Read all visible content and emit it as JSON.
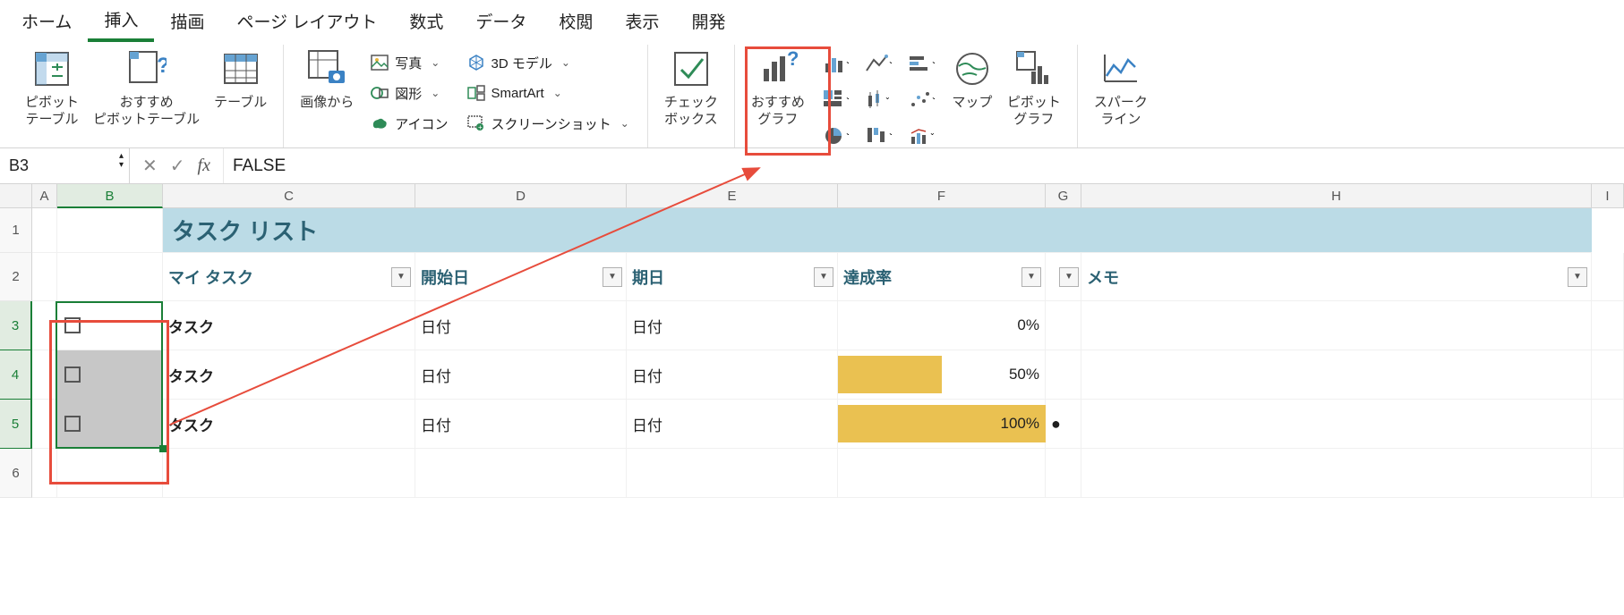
{
  "tabs": {
    "home": "ホーム",
    "insert": "挿入",
    "draw": "描画",
    "pagelayout": "ページ レイアウト",
    "formulas": "数式",
    "data": "データ",
    "review": "校閲",
    "view": "表示",
    "developer": "開発"
  },
  "ribbon": {
    "pivot": "ピボット\nテーブル",
    "rec_pivot": "おすすめ\nピボットテーブル",
    "table": "テーブル",
    "image_from": "画像から",
    "photo": "写真",
    "shapes": "図形",
    "icons": "アイコン",
    "model3d": "3D モデル",
    "smartart": "SmartArt",
    "screenshot": "スクリーンショット",
    "checkbox": "チェック\nボックス",
    "rec_chart": "おすすめ\nグラフ",
    "map": "マップ",
    "pivot_chart": "ピボット\nグラフ",
    "sparkline": "スパーク\nライン"
  },
  "formula_bar": {
    "name_box": "B3",
    "value": "FALSE"
  },
  "columns": [
    "A",
    "B",
    "C",
    "D",
    "E",
    "F",
    "G",
    "H",
    "I"
  ],
  "rows": [
    "1",
    "2",
    "3",
    "4",
    "5",
    "6"
  ],
  "sheet": {
    "title": "タスク リスト",
    "headers": {
      "mytask": "マイ タスク",
      "start": "開始日",
      "due": "期日",
      "progress": "達成率",
      "memo": "メモ"
    },
    "rows": [
      {
        "task": "タスク",
        "start": "日付",
        "due": "日付",
        "pct_label": "0%",
        "pct": 0,
        "bullet": ""
      },
      {
        "task": "タスク",
        "start": "日付",
        "due": "日付",
        "pct_label": "50%",
        "pct": 50,
        "bullet": ""
      },
      {
        "task": "タスク",
        "start": "日付",
        "due": "日付",
        "pct_label": "100%",
        "pct": 100,
        "bullet": "●"
      }
    ],
    "colors": {
      "title_bg": "#bbdbe6",
      "header_text": "#2b6173",
      "bar": "#eac151",
      "sel_border": "#1a7f37",
      "anno": "#e74c3c"
    }
  }
}
